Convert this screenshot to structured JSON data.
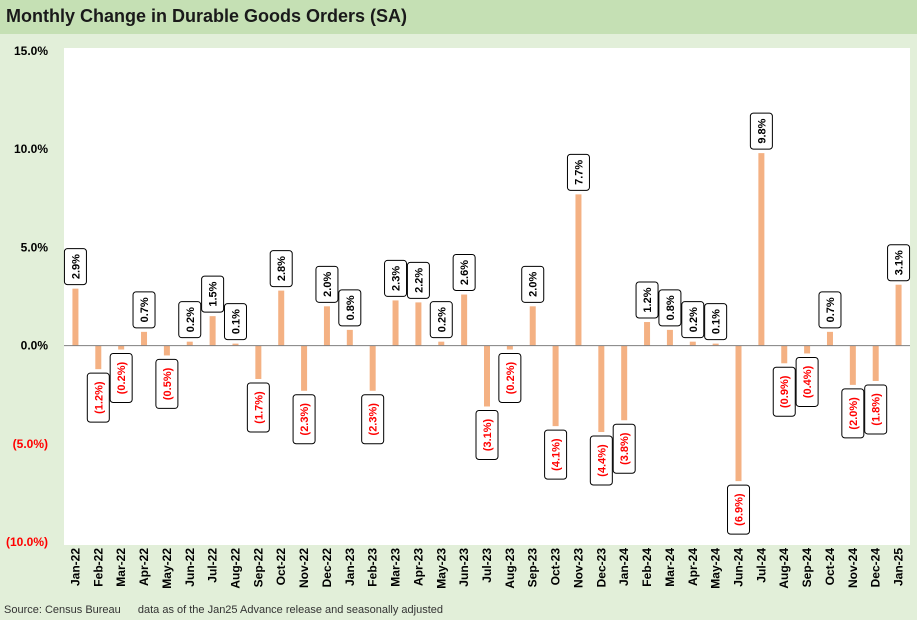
{
  "title": "Monthly Change in Durable Goods Orders (SA)",
  "source": "Source: Census Bureau",
  "note": "data as of the Jan25 Advance release and seasonally adjusted",
  "colors": {
    "bar": "#f4b183",
    "positive_label": "#000000",
    "negative_label": "#ff0000",
    "axis_negative": "#ff0000",
    "background": "#e2efd9",
    "title_bar": "#c5e0b4"
  },
  "chart_data": {
    "type": "bar",
    "title": "Monthly Change in Durable Goods Orders (SA)",
    "xlabel": "",
    "ylabel": "",
    "ylim": [
      -10,
      15
    ],
    "y_ticks": [
      -10,
      -5,
      0,
      5,
      10,
      15
    ],
    "y_tick_labels": [
      "(10.0%)",
      "(5.0%)",
      "0.0%",
      "5.0%",
      "10.0%",
      "15.0%"
    ],
    "grid": false,
    "categories": [
      "Jan-22",
      "Feb-22",
      "Mar-22",
      "Apr-22",
      "May-22",
      "Jun-22",
      "Jul-22",
      "Aug-22",
      "Sep-22",
      "Oct-22",
      "Nov-22",
      "Dec-22",
      "Jan-23",
      "Feb-23",
      "Mar-23",
      "Apr-23",
      "May-23",
      "Jun-23",
      "Jul-23",
      "Aug-23",
      "Sep-23",
      "Oct-23",
      "Nov-23",
      "Dec-23",
      "Jan-24",
      "Feb-24",
      "Mar-24",
      "Apr-24",
      "May-24",
      "Jun-24",
      "Jul-24",
      "Aug-24",
      "Sep-24",
      "Oct-24",
      "Nov-24",
      "Dec-24",
      "Jan-25"
    ],
    "values": [
      2.9,
      -1.2,
      -0.2,
      0.7,
      -0.5,
      0.2,
      1.5,
      0.1,
      -1.7,
      2.8,
      -2.3,
      2.0,
      0.8,
      -2.3,
      2.3,
      2.2,
      0.2,
      2.6,
      -3.1,
      -0.2,
      2.0,
      -4.1,
      7.7,
      -4.4,
      -3.8,
      1.2,
      0.8,
      0.2,
      0.1,
      -6.9,
      9.8,
      -0.9,
      -0.4,
      0.7,
      -2.0,
      -1.8,
      3.1
    ],
    "data_labels": [
      "2.9%",
      "(1.2%)",
      "(0.2%)",
      "0.7%",
      "(0.5%)",
      "0.2%",
      "1.5%",
      "0.1%",
      "(1.7%)",
      "2.8%",
      "(2.3%)",
      "2.0%",
      "0.8%",
      "(2.3%)",
      "2.3%",
      "2.2%",
      "0.2%",
      "2.6%",
      "(3.1%)",
      "(0.2%)",
      "2.0%",
      "(4.1%)",
      "7.7%",
      "(4.4%)",
      "(3.8%)",
      "1.2%",
      "0.8%",
      "0.2%",
      "0.1%",
      "(6.9%)",
      "9.8%",
      "(0.9%)",
      "(0.4%)",
      "0.7%",
      "(2.0%)",
      "(1.8%)",
      "3.1%"
    ]
  }
}
